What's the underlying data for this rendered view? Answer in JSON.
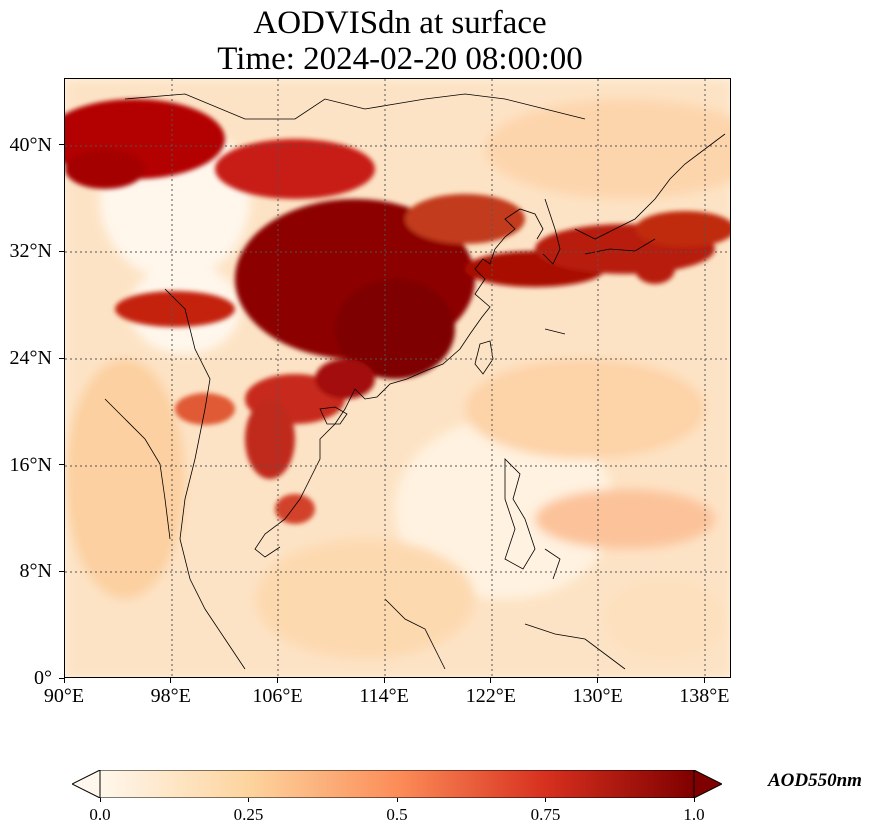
{
  "title": {
    "line1": "AODVISdn at surface",
    "line2": "Time: 2024-02-20 08:00:00"
  },
  "map": {
    "lon_range": [
      90,
      140
    ],
    "lat_range": [
      0,
      45
    ],
    "lon_ticks": [
      "90°E",
      "98°E",
      "106°E",
      "114°E",
      "122°E",
      "130°E",
      "138°E"
    ],
    "lat_ticks": [
      "0°",
      "8°N",
      "16°N",
      "24°N",
      "32°N",
      "40°N"
    ],
    "gridlines": true,
    "colormap": "OrRd"
  },
  "colorbar": {
    "label": "AOD550nm",
    "ticks": [
      "0.0",
      "0.25",
      "0.5",
      "0.75",
      "1.0"
    ],
    "min": 0.0,
    "max": 1.0,
    "extend": "both",
    "colors": [
      "#fff7ec",
      "#fdd49e",
      "#fc8d59",
      "#d7301f",
      "#7f0000"
    ]
  }
}
